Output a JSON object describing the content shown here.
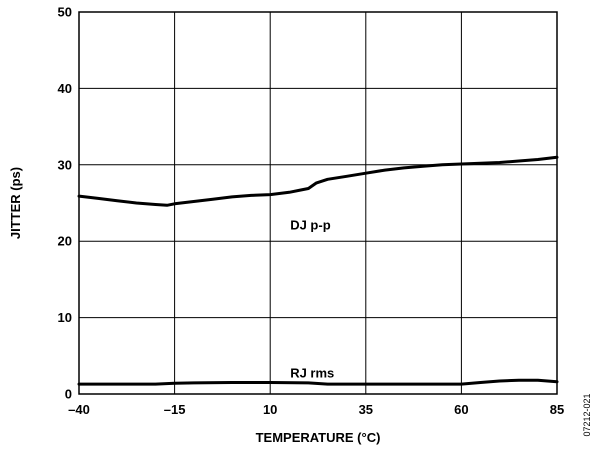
{
  "chart_data": {
    "type": "line",
    "xlabel": "TEMPERATURE (°C)",
    "ylabel": "JITTER (ps)",
    "xlim": [
      -40,
      85
    ],
    "ylim": [
      0,
      50
    ],
    "x_ticks": [
      -40,
      -15,
      10,
      35,
      60,
      85
    ],
    "x_tick_labels": [
      "–40",
      "–15",
      "10",
      "35",
      "60",
      "85"
    ],
    "y_ticks": [
      0,
      10,
      20,
      30,
      40,
      50
    ],
    "y_tick_labels": [
      "0",
      "10",
      "20",
      "30",
      "40",
      "50"
    ],
    "grid": true,
    "series": [
      {
        "name": "DJ p-p",
        "label_at": [
          10,
          22.2
        ],
        "x": [
          -40,
          -35,
          -30,
          -25,
          -20,
          -17,
          -15,
          -10,
          -5,
          0,
          5,
          10,
          15,
          18,
          20,
          22,
          25,
          30,
          35,
          40,
          45,
          50,
          55,
          60,
          65,
          70,
          75,
          80,
          85
        ],
        "y": [
          25.9,
          25.6,
          25.3,
          25.0,
          24.8,
          24.7,
          24.9,
          25.2,
          25.5,
          25.8,
          26.0,
          26.1,
          26.4,
          26.7,
          26.9,
          27.6,
          28.1,
          28.5,
          28.9,
          29.3,
          29.6,
          29.8,
          30.0,
          30.1,
          30.2,
          30.3,
          30.5,
          30.7,
          31.0
        ]
      },
      {
        "name": "RJ rms",
        "label_at": [
          10,
          2.8
        ],
        "x": [
          -40,
          -30,
          -20,
          -15,
          -10,
          0,
          10,
          20,
          25,
          30,
          40,
          50,
          60,
          65,
          70,
          75,
          80,
          85
        ],
        "y": [
          1.3,
          1.3,
          1.3,
          1.4,
          1.45,
          1.5,
          1.5,
          1.45,
          1.3,
          1.3,
          1.3,
          1.3,
          1.3,
          1.5,
          1.7,
          1.8,
          1.8,
          1.6
        ]
      }
    ]
  },
  "figure_id": "07212-021"
}
